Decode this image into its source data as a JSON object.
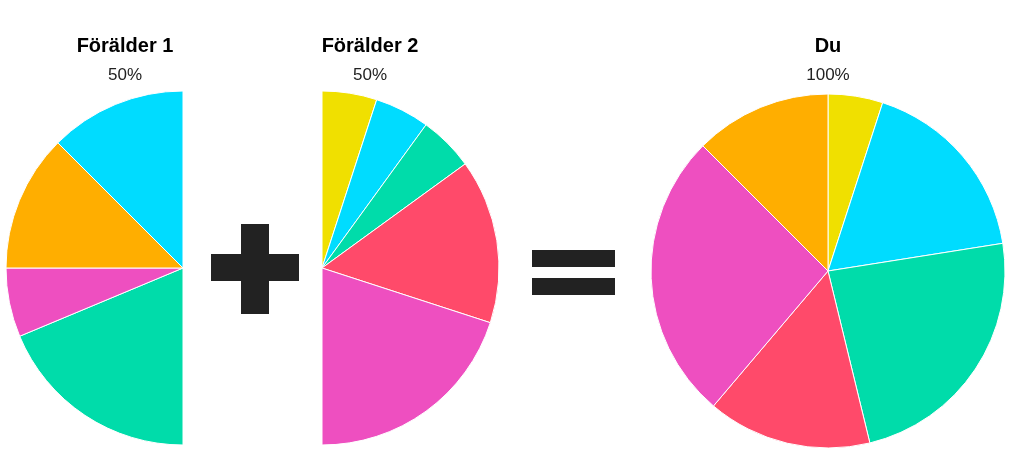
{
  "chart_data": [
    {
      "type": "pie",
      "title": "Förälder 1",
      "subtitle": "50%",
      "categories": [
        null,
        null,
        null,
        null
      ],
      "values": [
        37.4,
        12.6,
        25,
        25
      ],
      "colors": [
        "#00dcaa",
        "#ee4fc0",
        "#ffae00",
        "#00dcff"
      ]
    },
    {
      "type": "pie",
      "title": "Förälder 2",
      "subtitle": "50%",
      "categories": [
        null,
        null,
        null,
        null,
        null
      ],
      "values": [
        10,
        10,
        10,
        30,
        40
      ],
      "colors": [
        "#f0e000",
        "#00dcff",
        "#00dcaa",
        "#ff4a6a",
        "#ee4fc0"
      ]
    },
    {
      "type": "pie",
      "title": "Du",
      "subtitle": "100%",
      "categories": [
        null,
        null,
        null,
        null,
        null,
        null
      ],
      "values": [
        5,
        17.5,
        23.7,
        15,
        26.3,
        12.5
      ],
      "colors": [
        "#f0e000",
        "#00dcff",
        "#00dcaa",
        "#ff4a6a",
        "#ee4fc0",
        "#ffae00"
      ]
    }
  ]
}
